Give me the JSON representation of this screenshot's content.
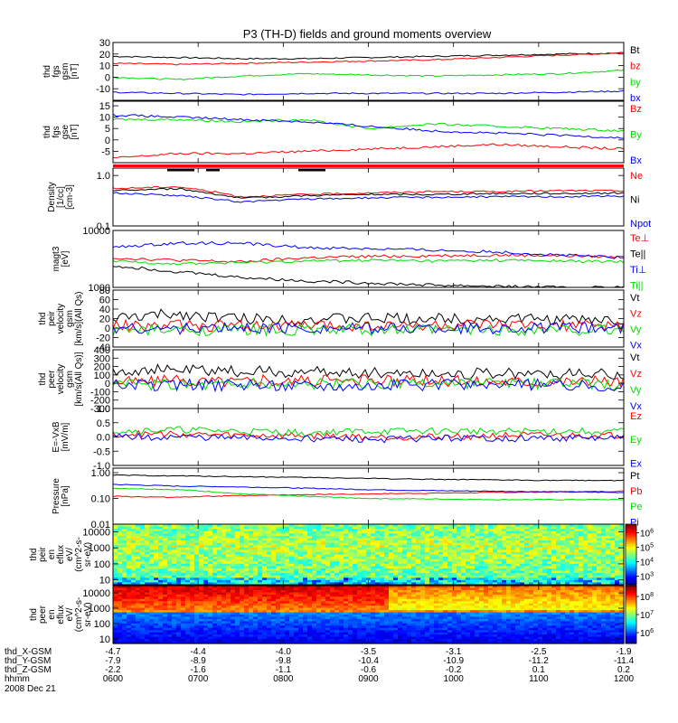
{
  "title": "P3 (TH-D) fields and ground moments overview",
  "date": "2008 Dec 21",
  "time_ticks": [
    "0600",
    "0700",
    "0800",
    "0900",
    "1000",
    "1100",
    "1200"
  ],
  "ephemeris": [
    {
      "label": "thd_X-GSM",
      "values": [
        "-4.7",
        "-4.4",
        "-4.0",
        "-3.5",
        "-3.1",
        "-2.5",
        "-1.9"
      ]
    },
    {
      "label": "thd_Y-GSM",
      "values": [
        "-7.9",
        "-8.9",
        "-9.8",
        "-10.4",
        "-10.9",
        "-11.2",
        "-11.4"
      ]
    },
    {
      "label": "thd_Z-GSM",
      "values": [
        "-2.2",
        "-1.6",
        "-1.1",
        "-0.6",
        "-0.2",
        "0.1",
        "0.2"
      ]
    },
    {
      "label": "hhmm",
      "values": []
    }
  ],
  "colors": {
    "black": "#000000",
    "red": "#ff0000",
    "green": "#00dd00",
    "blue": "#0000ff"
  },
  "chart_data": [
    {
      "id": "fgs_gsm",
      "type": "line",
      "ylabel": [
        "thd",
        "fgs",
        "gsm",
        "[nT]"
      ],
      "ylim": [
        -20,
        30
      ],
      "yticks": [
        "-10",
        "0",
        "10",
        "20",
        "30"
      ],
      "series": [
        {
          "name": "Bt",
          "color": "#000000",
          "y": [
            18,
            17,
            16,
            16,
            17,
            18,
            19,
            20,
            21
          ]
        },
        {
          "name": "bz",
          "color": "#ff0000",
          "y": [
            12,
            11,
            12,
            13,
            14,
            15,
            17,
            19,
            21
          ]
        },
        {
          "name": "by",
          "color": "#00dd00",
          "y": [
            0,
            -2,
            1,
            3,
            2,
            1,
            2,
            3,
            6
          ]
        },
        {
          "name": "bx",
          "color": "#0000ff",
          "y": [
            -13,
            -14,
            -15,
            -14,
            -14,
            -14,
            -14,
            -13,
            -12
          ]
        }
      ]
    },
    {
      "id": "fgs_gse",
      "type": "line",
      "ylabel": [
        "thd",
        "fgs",
        "gse",
        "[nT]"
      ],
      "ylim": [
        -10,
        17
      ],
      "yticks": [
        "-5",
        "0",
        "5",
        "10",
        "15"
      ],
      "series": [
        {
          "name": "Bz",
          "color": "#ff0000",
          "y": [
            -8,
            -6,
            -6,
            -5,
            -4,
            -3,
            -2,
            -3,
            -4
          ]
        },
        {
          "name": "By",
          "color": "#00dd00",
          "y": [
            9,
            9,
            8,
            9,
            5,
            7,
            6,
            5,
            4
          ]
        },
        {
          "name": "Bx",
          "color": "#0000ff",
          "y": [
            11,
            10,
            9,
            8,
            6,
            4,
            3,
            2,
            1
          ]
        }
      ]
    },
    {
      "id": "density",
      "type": "line",
      "ylabel": [
        "Density",
        "[1/cc]",
        "[cm-3]"
      ],
      "log": true,
      "ylim": [
        0.1,
        1.4
      ],
      "yticks": [
        "0.1",
        "1.0"
      ],
      "series": [
        {
          "name": "Ne",
          "color": "#ff0000",
          "y": [
            0.55,
            0.6,
            0.38,
            0.42,
            0.45,
            0.48,
            0.48,
            0.5,
            0.5
          ]
        },
        {
          "name": "Ni",
          "color": "#000000",
          "y": [
            0.5,
            0.55,
            0.35,
            0.4,
            0.42,
            0.42,
            0.44,
            0.44,
            0.45
          ]
        },
        {
          "name": "Npot",
          "color": "#0000ff",
          "y": [
            0.45,
            0.4,
            0.3,
            0.34,
            0.36,
            0.37,
            0.38,
            0.38,
            0.39
          ]
        }
      ]
    },
    {
      "id": "temperature",
      "type": "line",
      "ylabel": [
        "magt3",
        "[eV]"
      ],
      "log": true,
      "ylim": [
        1000,
        10000
      ],
      "yticks": [
        "1000",
        "10000"
      ],
      "series": [
        {
          "name": "Te⊥",
          "color": "#ff0000",
          "y": [
            3300,
            3000,
            2800,
            3300,
            3500,
            3600,
            3700,
            3600,
            3400
          ]
        },
        {
          "name": "Te||",
          "color": "#000000",
          "y": [
            2400,
            1900,
            1500,
            1300,
            1200,
            1100,
            1050,
            1000,
            1000
          ]
        },
        {
          "name": "Ti⊥",
          "color": "#0000ff",
          "y": [
            5000,
            6000,
            6000,
            5000,
            4800,
            4500,
            4200,
            3700,
            3300
          ]
        },
        {
          "name": "Ti||",
          "color": "#00dd00",
          "y": [
            2900,
            2600,
            2700,
            2900,
            3000,
            2900,
            3000,
            2900,
            2800
          ]
        }
      ]
    },
    {
      "id": "peir_velocity",
      "type": "line",
      "ylabel": [
        "thd",
        "peir",
        "velocity",
        "gsm",
        "[km/s](All Qs)"
      ],
      "ylim": [
        -40,
        80
      ],
      "yticks": [
        "-40",
        "-20",
        "0",
        "20",
        "40",
        "60",
        "80"
      ],
      "series": [
        {
          "name": "Vt",
          "color": "#000000",
          "y": [
            20,
            30,
            20,
            18,
            20,
            20,
            20,
            18,
            16
          ]
        },
        {
          "name": "Vz",
          "color": "#ff0000",
          "y": [
            5,
            5,
            5,
            5,
            5,
            5,
            5,
            5,
            5
          ]
        },
        {
          "name": "Vy",
          "color": "#00dd00",
          "y": [
            -5,
            -5,
            -4,
            -4,
            -4,
            -4,
            -4,
            -4,
            -4
          ]
        },
        {
          "name": "Vx",
          "color": "#0000ff",
          "y": [
            0,
            -2,
            0,
            0,
            0,
            0,
            0,
            0,
            0
          ]
        }
      ]
    },
    {
      "id": "peer_velocity",
      "type": "line",
      "ylabel": [
        "thd",
        "peer",
        "velocity",
        "gsm",
        "[km/s(All Qs)]"
      ],
      "ylim": [
        -300,
        400
      ],
      "yticks": [
        "-300",
        "-200",
        "-100",
        "0",
        "100",
        "200",
        "300",
        "400"
      ],
      "series": [
        {
          "name": "Vt",
          "color": "#000000",
          "y": [
            150,
            160,
            140,
            130,
            130,
            120,
            120,
            110,
            100
          ]
        },
        {
          "name": "Vz",
          "color": "#ff0000",
          "y": [
            30,
            30,
            30,
            30,
            30,
            30,
            30,
            30,
            30
          ]
        },
        {
          "name": "Vy",
          "color": "#00dd00",
          "y": [
            -10,
            -10,
            -10,
            -10,
            -10,
            -10,
            -10,
            -10,
            -10
          ]
        },
        {
          "name": "Vx",
          "color": "#0000ff",
          "y": [
            -20,
            -20,
            -20,
            -20,
            -20,
            -20,
            -20,
            -20,
            -20
          ]
        }
      ]
    },
    {
      "id": "efield",
      "type": "line",
      "ylabel": [
        "E=-VxB",
        "[mV/m]"
      ],
      "ylim": [
        -1.0,
        1.0
      ],
      "yticks": [
        "-1.0",
        "-0.5",
        "0.0",
        "0.5",
        "1.0"
      ],
      "series": [
        {
          "name": "Ez",
          "color": "#ff0000",
          "y": [
            0.1,
            0.1,
            0.05,
            0.05,
            0.0,
            0.0,
            0.05,
            0.05,
            0.05
          ]
        },
        {
          "name": "Ey",
          "color": "#00dd00",
          "y": [
            0.2,
            0.25,
            0.2,
            0.15,
            0.2,
            0.2,
            0.2,
            0.2,
            0.2
          ]
        },
        {
          "name": "Ex",
          "color": "#0000ff",
          "y": [
            0.0,
            0.0,
            -0.05,
            -0.05,
            -0.1,
            -0.05,
            -0.05,
            -0.05,
            -0.05
          ]
        }
      ]
    },
    {
      "id": "pressure",
      "type": "line",
      "ylabel": [
        "Pressure",
        "[nPa]"
      ],
      "log": true,
      "ylim": [
        0.01,
        1.5
      ],
      "yticks": [
        "0.01",
        "0.10",
        "1.00"
      ],
      "series": [
        {
          "name": "Pt",
          "color": "#000000",
          "y": [
            0.8,
            0.75,
            0.7,
            0.65,
            0.6,
            0.55,
            0.52,
            0.5,
            0.5
          ]
        },
        {
          "name": "Pb",
          "color": "#ff0000",
          "y": [
            0.12,
            0.11,
            0.13,
            0.14,
            0.15,
            0.16,
            0.17,
            0.18,
            0.19
          ]
        },
        {
          "name": "Pe",
          "color": "#00dd00",
          "y": [
            0.25,
            0.22,
            0.15,
            0.12,
            0.1,
            0.095,
            0.09,
            0.09,
            0.09
          ]
        },
        {
          "name": "Pi",
          "color": "#0000ff",
          "y": [
            0.35,
            0.3,
            0.28,
            0.25,
            0.22,
            0.2,
            0.19,
            0.18,
            0.17
          ]
        }
      ]
    },
    {
      "id": "peir_spec",
      "type": "heatmap",
      "ylabel": [
        "thd",
        "peir",
        "en",
        "eflux",
        "eV/",
        "(cm^2-s-",
        "sr-eV)"
      ],
      "log": true,
      "ylim": [
        5,
        30000
      ],
      "yticks": [
        "10",
        "100",
        "1000",
        "10000"
      ],
      "colorbar": {
        "ticks": [
          "10^3",
          "10^4",
          "10^5",
          "10^6"
        ],
        "exponents": [
          3,
          4,
          5,
          6
        ]
      }
    },
    {
      "id": "peer_spec",
      "type": "heatmap",
      "ylabel": [
        "thd",
        "peer",
        "en",
        "eflux",
        "eV/",
        "(cm^2-s-",
        "sr-eV)"
      ],
      "log": true,
      "ylim": [
        5,
        30000
      ],
      "yticks": [
        "10",
        "100",
        "1000",
        "10000"
      ],
      "colorbar": {
        "ticks": [
          "10^6",
          "10^7",
          "10^8"
        ],
        "exponents": [
          6,
          7,
          8
        ]
      }
    }
  ]
}
